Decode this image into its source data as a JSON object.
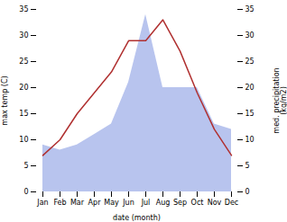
{
  "chart_data": {
    "type": "line",
    "categories": [
      "Jan",
      "Feb",
      "Mar",
      "Apr",
      "May",
      "Jun",
      "Jul",
      "Aug",
      "Sep",
      "Oct",
      "Nov",
      "Dec"
    ],
    "xlabel": "date (month)",
    "ylabel": "max temp (C)",
    "y2label": "med. precipitation\n(kg/m2)",
    "ylim": [
      0,
      35
    ],
    "yticks": [
      0,
      5,
      10,
      15,
      20,
      25,
      30,
      35
    ],
    "y2lim": [
      0,
      35
    ],
    "y2ticks": [
      0,
      5,
      10,
      15,
      20,
      25,
      30,
      35
    ],
    "series": [
      {
        "type": "area",
        "axis": "y2",
        "color": "#b8c4ee",
        "values": [
          9,
          8,
          9,
          11,
          13,
          21,
          34,
          20,
          20,
          20,
          13,
          12
        ]
      },
      {
        "type": "line",
        "color": "#b03030",
        "values": [
          7,
          10,
          15,
          19,
          23,
          29,
          29,
          33,
          27,
          19,
          12,
          7
        ]
      }
    ]
  }
}
